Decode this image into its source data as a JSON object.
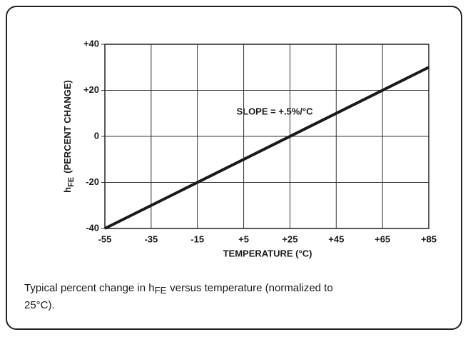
{
  "chart_data": {
    "type": "line",
    "xlabel": "TEMPERATURE (°C)",
    "ylabel": {
      "symbol": "h",
      "subscript": "FE",
      "text": "(PERCENT CHANGE)"
    },
    "annotation": "SLOPE = +.5%/°C",
    "caption": {
      "line1": [
        "Typical percent change in h",
        "FE",
        "versus temperature (normalized to"
      ],
      "line2": "25°C)."
    },
    "x": [
      -55,
      85
    ],
    "values": [
      -40,
      30
    ],
    "color": "#1a1a1a",
    "xlim": [
      -55,
      85
    ],
    "ylim": [
      -40,
      40
    ],
    "xticks": [
      -55,
      -35,
      -15,
      {
        "value": 5,
        "label": "+5"
      },
      {
        "value": 25,
        "label": "+25"
      },
      {
        "value": 45,
        "label": "+45"
      },
      {
        "value": 65,
        "label": "+65"
      },
      {
        "value": 85,
        "label": "+85"
      }
    ],
    "yticks": [
      -40,
      -20,
      0,
      {
        "value": 20,
        "label": "+20"
      },
      {
        "value": 40,
        "label": "+40"
      }
    ],
    "grid": true
  }
}
